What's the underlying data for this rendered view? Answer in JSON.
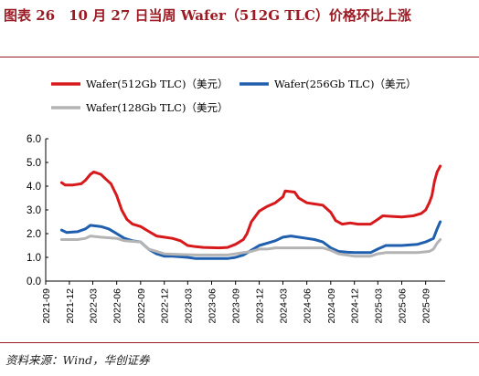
{
  "title": "图表 26　10 月 27 日当周 Wafer（512G TLC）价格环比上涨",
  "source": "资料来源：Wind，华创证券",
  "chart_data": {
    "type": "line",
    "ylim": [
      0,
      6
    ],
    "yticks": [
      "0.0",
      "1.0",
      "2.0",
      "3.0",
      "4.0",
      "5.0",
      "6.0"
    ],
    "xticks": [
      "2021-09",
      "2021-12",
      "2022-03",
      "2022-06",
      "2022-09",
      "2022-12",
      "2023-03",
      "2023-06",
      "2023-09",
      "2023-12",
      "2024-03",
      "2024-06",
      "2024-09",
      "2024-12",
      "2025-03",
      "2025-06",
      "2025-09"
    ],
    "legend_position": "top",
    "series": [
      {
        "name": "Wafer(512Gb TLC)（美元）",
        "color": "#d7191c",
        "points": [
          [
            "2021-11-01",
            4.15
          ],
          [
            "2021-11-15",
            4.05
          ],
          [
            "2021-12-15",
            4.05
          ],
          [
            "2022-01-15",
            4.1
          ],
          [
            "2022-02-01",
            4.25
          ],
          [
            "2022-02-20",
            4.5
          ],
          [
            "2022-03-05",
            4.6
          ],
          [
            "2022-04-01",
            4.5
          ],
          [
            "2022-04-20",
            4.3
          ],
          [
            "2022-05-10",
            4.1
          ],
          [
            "2022-06-01",
            3.6
          ],
          [
            "2022-06-20",
            3.0
          ],
          [
            "2022-07-10",
            2.6
          ],
          [
            "2022-08-01",
            2.4
          ],
          [
            "2022-09-01",
            2.3
          ],
          [
            "2022-10-01",
            2.1
          ],
          [
            "2022-11-01",
            1.9
          ],
          [
            "2022-12-01",
            1.85
          ],
          [
            "2023-01-01",
            1.8
          ],
          [
            "2023-02-01",
            1.7
          ],
          [
            "2023-03-01",
            1.5
          ],
          [
            "2023-04-01",
            1.45
          ],
          [
            "2023-05-01",
            1.42
          ],
          [
            "2023-07-01",
            1.4
          ],
          [
            "2023-08-01",
            1.42
          ],
          [
            "2023-09-01",
            1.55
          ],
          [
            "2023-10-01",
            1.75
          ],
          [
            "2023-10-15",
            2.0
          ],
          [
            "2023-11-01",
            2.5
          ],
          [
            "2023-12-01",
            2.95
          ],
          [
            "2024-01-01",
            3.15
          ],
          [
            "2024-02-01",
            3.3
          ],
          [
            "2024-03-01",
            3.55
          ],
          [
            "2024-03-10",
            3.8
          ],
          [
            "2024-04-15",
            3.75
          ],
          [
            "2024-05-01",
            3.5
          ],
          [
            "2024-06-01",
            3.3
          ],
          [
            "2024-07-01",
            3.25
          ],
          [
            "2024-08-01",
            3.2
          ],
          [
            "2024-09-01",
            2.9
          ],
          [
            "2024-09-20",
            2.55
          ],
          [
            "2024-10-15",
            2.4
          ],
          [
            "2024-11-15",
            2.45
          ],
          [
            "2024-12-15",
            2.4
          ],
          [
            "2025-02-01",
            2.4
          ],
          [
            "2025-03-01",
            2.6
          ],
          [
            "2025-03-20",
            2.75
          ],
          [
            "2025-05-01",
            2.72
          ],
          [
            "2025-06-01",
            2.7
          ],
          [
            "2025-07-15",
            2.75
          ],
          [
            "2025-08-15",
            2.85
          ],
          [
            "2025-09-01",
            3.0
          ],
          [
            "2025-09-15",
            3.3
          ],
          [
            "2025-09-25",
            3.6
          ],
          [
            "2025-10-05",
            4.2
          ],
          [
            "2025-10-15",
            4.6
          ],
          [
            "2025-10-27",
            4.85
          ]
        ]
      },
      {
        "name": "Wafer(256Gb TLC)（美元）",
        "color": "#1f5fad",
        "points": [
          [
            "2021-11-01",
            2.15
          ],
          [
            "2021-11-20",
            2.05
          ],
          [
            "2022-01-01",
            2.08
          ],
          [
            "2022-02-01",
            2.2
          ],
          [
            "2022-02-20",
            2.35
          ],
          [
            "2022-04-01",
            2.3
          ],
          [
            "2022-05-01",
            2.2
          ],
          [
            "2022-06-01",
            2.0
          ],
          [
            "2022-07-01",
            1.8
          ],
          [
            "2022-08-01",
            1.7
          ],
          [
            "2022-09-01",
            1.65
          ],
          [
            "2022-10-01",
            1.35
          ],
          [
            "2022-11-01",
            1.15
          ],
          [
            "2022-12-01",
            1.05
          ],
          [
            "2023-01-01",
            1.05
          ],
          [
            "2023-03-01",
            1.0
          ],
          [
            "2023-04-01",
            0.95
          ],
          [
            "2023-06-01",
            0.95
          ],
          [
            "2023-08-01",
            0.95
          ],
          [
            "2023-09-01",
            1.0
          ],
          [
            "2023-10-01",
            1.1
          ],
          [
            "2023-11-01",
            1.3
          ],
          [
            "2023-12-01",
            1.5
          ],
          [
            "2024-01-01",
            1.6
          ],
          [
            "2024-02-01",
            1.7
          ],
          [
            "2024-03-01",
            1.85
          ],
          [
            "2024-04-01",
            1.9
          ],
          [
            "2024-06-01",
            1.8
          ],
          [
            "2024-07-01",
            1.75
          ],
          [
            "2024-08-01",
            1.65
          ],
          [
            "2024-09-01",
            1.4
          ],
          [
            "2024-10-01",
            1.25
          ],
          [
            "2024-11-01",
            1.22
          ],
          [
            "2024-12-01",
            1.2
          ],
          [
            "2025-02-01",
            1.2
          ],
          [
            "2025-03-01",
            1.35
          ],
          [
            "2025-04-01",
            1.5
          ],
          [
            "2025-06-01",
            1.5
          ],
          [
            "2025-08-01",
            1.55
          ],
          [
            "2025-09-01",
            1.65
          ],
          [
            "2025-10-01",
            1.8
          ],
          [
            "2025-10-15",
            2.2
          ],
          [
            "2025-10-27",
            2.5
          ]
        ]
      },
      {
        "name": "Wafer(128Gb TLC)（美元）",
        "color": "#b4b4b4",
        "points": [
          [
            "2021-11-01",
            1.75
          ],
          [
            "2022-01-01",
            1.75
          ],
          [
            "2022-02-01",
            1.8
          ],
          [
            "2022-02-20",
            1.9
          ],
          [
            "2022-04-01",
            1.85
          ],
          [
            "2022-06-01",
            1.8
          ],
          [
            "2022-07-01",
            1.7
          ],
          [
            "2022-09-01",
            1.65
          ],
          [
            "2022-10-01",
            1.35
          ],
          [
            "2022-11-01",
            1.25
          ],
          [
            "2022-12-01",
            1.15
          ],
          [
            "2023-02-01",
            1.12
          ],
          [
            "2023-04-01",
            1.1
          ],
          [
            "2023-06-01",
            1.1
          ],
          [
            "2023-08-01",
            1.1
          ],
          [
            "2023-09-01",
            1.15
          ],
          [
            "2023-11-01",
            1.25
          ],
          [
            "2023-12-01",
            1.35
          ],
          [
            "2024-01-01",
            1.35
          ],
          [
            "2024-02-01",
            1.4
          ],
          [
            "2024-08-01",
            1.4
          ],
          [
            "2024-09-01",
            1.3
          ],
          [
            "2024-10-01",
            1.15
          ],
          [
            "2024-12-01",
            1.05
          ],
          [
            "2025-02-01",
            1.05
          ],
          [
            "2025-03-01",
            1.15
          ],
          [
            "2025-04-01",
            1.2
          ],
          [
            "2025-06-01",
            1.2
          ],
          [
            "2025-08-01",
            1.2
          ],
          [
            "2025-09-15",
            1.25
          ],
          [
            "2025-10-01",
            1.35
          ],
          [
            "2025-10-15",
            1.6
          ],
          [
            "2025-10-27",
            1.75
          ]
        ]
      }
    ]
  }
}
